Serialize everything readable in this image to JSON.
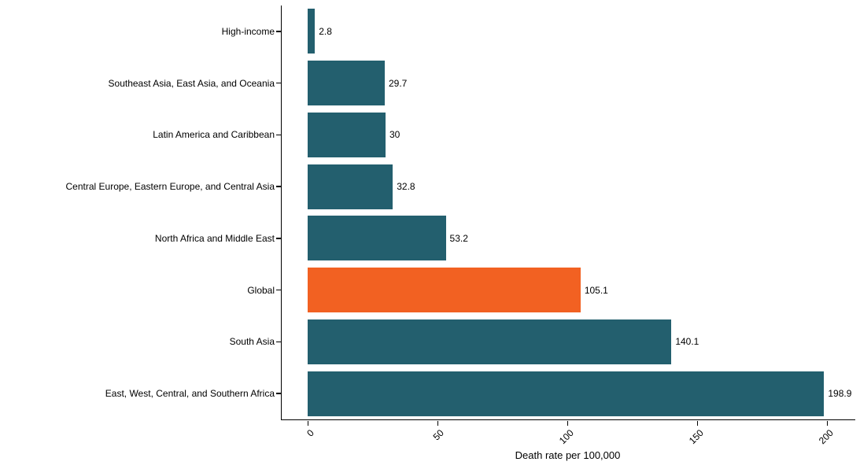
{
  "chart_data": {
    "type": "bar",
    "orientation": "horizontal",
    "title": "",
    "xlabel": "Death rate per 100,000",
    "ylabel": "",
    "xlim": [
      0,
      200
    ],
    "xticks": [
      0,
      50,
      100,
      150,
      200
    ],
    "xtick_labels": [
      "0",
      "50",
      "100",
      "150",
      "200"
    ],
    "grid": false,
    "legend": false,
    "bar_color": "#235f6e",
    "highlight_color": "#f26122",
    "axis_color": "#000000",
    "text_color": "#000000",
    "bars": [
      {
        "label": "High-income",
        "value": 2.8,
        "value_label": "2.8",
        "highlight": false
      },
      {
        "label": "Southeast Asia, East Asia, and Oceania",
        "value": 29.7,
        "value_label": "29.7",
        "highlight": false
      },
      {
        "label": "Latin America and Caribbean",
        "value": 30,
        "value_label": "30",
        "highlight": false
      },
      {
        "label": "Central Europe, Eastern Europe, and Central Asia",
        "value": 32.8,
        "value_label": "32.8",
        "highlight": false
      },
      {
        "label": "North Africa and Middle East",
        "value": 53.2,
        "value_label": "53.2",
        "highlight": false
      },
      {
        "label": "Global",
        "value": 105.1,
        "value_label": "105.1",
        "highlight": true
      },
      {
        "label": "South Asia",
        "value": 140.1,
        "value_label": "140.1",
        "highlight": false
      },
      {
        "label": "East, West, Central, and Southern Africa",
        "value": 198.9,
        "value_label": "198.9",
        "highlight": false
      }
    ]
  }
}
